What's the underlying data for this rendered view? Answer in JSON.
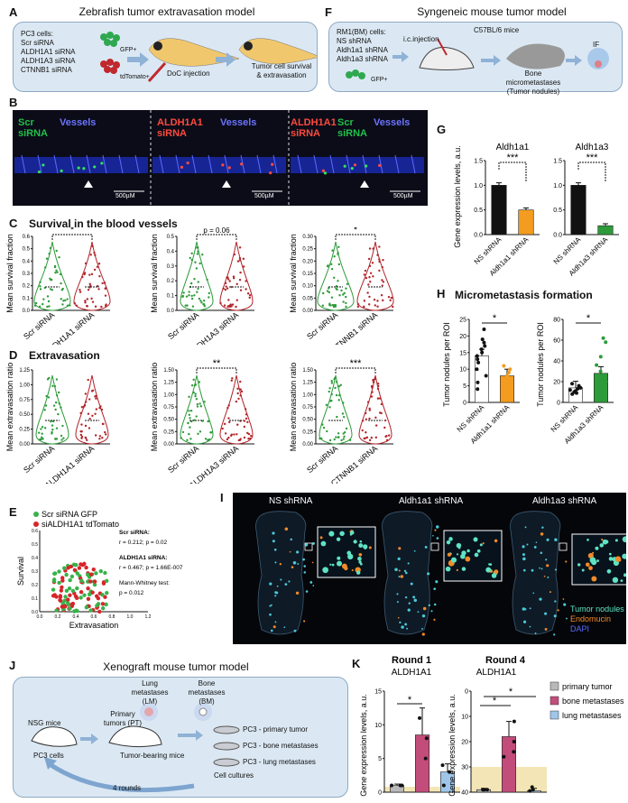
{
  "panelA": {
    "label": "A",
    "title": "Zebrafish tumor extravasation model",
    "cells_title": "PC3 cells:",
    "cells": [
      "Scr siRNA",
      "ALDH1A1 siRNA",
      "ALDH1A3 siRNA",
      "CTNNB1 siRNA"
    ],
    "gfp": "GFP+",
    "tdtomato": "tdTomato+",
    "doc": "DoC injection",
    "outcome": "Tumor cell survival & extravasation"
  },
  "panelB": {
    "label": "B",
    "frames": [
      {
        "l1": "Scr",
        "l2": "siRNA",
        "l3": "",
        "right": "Vessels",
        "scale": "500µM"
      },
      {
        "l1": "ALDH1A1",
        "l2": "siRNA",
        "l3": "",
        "right": "Vessels",
        "scale": "500µM"
      },
      {
        "l1": "ALDH1A1",
        "l2": "siRNA",
        "l3": "Scr siRNA",
        "right": "Vessels",
        "scale": "500µM"
      }
    ]
  },
  "panelC": {
    "label": "C",
    "title": "Survival in the blood vessels",
    "ylabel": "Mean survival fraction",
    "plots": [
      {
        "groups": [
          "Scr siRNA",
          "ALDH1A1 siRNA"
        ],
        "sig": "*",
        "yticks": [
          "0.6",
          "0.5",
          "0.4",
          "0.3",
          "0.2",
          "0.1",
          "0.0"
        ]
      },
      {
        "groups": [
          "Scr siRNA",
          "ALDH1A3 siRNA"
        ],
        "sig": "p = 0.06",
        "yticks": [
          "0.5",
          "0.4",
          "0.3",
          "0.2",
          "0.1",
          "0.0"
        ]
      },
      {
        "groups": [
          "Scr siRNA",
          "CTNNB1 siRNA"
        ],
        "sig": "*",
        "yticks": [
          "0.30",
          "0.25",
          "0.20",
          "0.15",
          "0.10",
          "0.05",
          "0.00"
        ]
      }
    ]
  },
  "panelD": {
    "label": "D",
    "title": "Extravasation",
    "ylabel": "Mean extravasation ratio",
    "plots": [
      {
        "groups": [
          "Scr siRNA",
          "ALDH1A1 siRNA"
        ],
        "sig": "",
        "yticks": [
          "1.25",
          "1.00",
          "0.75",
          "0.50",
          "0.25",
          "0.00"
        ]
      },
      {
        "groups": [
          "Scr siRNA",
          "ALDH1A3 siRNA"
        ],
        "sig": "**",
        "yticks": [
          "1.50",
          "1.25",
          "1.00",
          "0.75",
          "0.50",
          "0.25",
          "0.00"
        ]
      },
      {
        "groups": [
          "Scr siRNA",
          "CTNNB1 siRNA"
        ],
        "sig": "***",
        "yticks": [
          "1.50",
          "1.25",
          "1.00",
          "0.75",
          "0.50",
          "0.25",
          "0.00"
        ]
      }
    ]
  },
  "panelE": {
    "label": "E",
    "legend": [
      "Scr siRNA GFP",
      "siALDH1A1 tdTomato"
    ],
    "xlabel": "Extravasation",
    "ylabel": "Survival",
    "stats": [
      "Scr siRNA:",
      "r = 0.212; p = 0.02",
      "ALDH1A1 siRNA:",
      "r = 0.467; p = 1.66E-007",
      "Mann-Whitney test:",
      "p = 0.012"
    ],
    "xticks": [
      "0.0",
      "0.2",
      "0.4",
      "0.6",
      "0.8",
      "1.0",
      "1.2"
    ],
    "yticks": [
      "0.0",
      "0.1",
      "0.2",
      "0.3",
      "0.4",
      "0.5",
      "0.6"
    ]
  },
  "panelF": {
    "label": "F",
    "title": "Syngeneic mouse tumor model",
    "cells_title": "RM1(BM) cells:",
    "cells": [
      "NS shRNA",
      "Aldh1a1 shRNA",
      "Aldh1a3 shRNA"
    ],
    "gfp": "GFP+",
    "inj": "i.c.injection",
    "mice": "C57BL/6 mice",
    "outcome1": "Bone micrometastases",
    "outcome2": "(Tumor nodules)",
    "if": "IF"
  },
  "panelG": {
    "label": "G",
    "ylabel": "Gene expression levels, a.u.",
    "plots": [
      {
        "title": "Aldh1a1",
        "groups": [
          "NS shRNA",
          "Aldh1a1 shRNA"
        ],
        "sig": "***"
      },
      {
        "title": "Aldh1a3",
        "groups": [
          "NS shRNA",
          "Aldh1a3 shRNA"
        ],
        "sig": "***"
      }
    ],
    "yticks": [
      "1.5",
      "1.0",
      "0.5",
      "0.0"
    ]
  },
  "panelH": {
    "label": "H",
    "title": "Micrometastasis formation",
    "ylabel": "Tumor nodules per ROI",
    "plots": [
      {
        "groups": [
          "NS shRNA",
          "Aldh1a1 shRNA"
        ],
        "sig": "*",
        "yticks": [
          "25",
          "20",
          "15",
          "10",
          "5",
          "0"
        ]
      },
      {
        "groups": [
          "NS shRNA",
          "Aldh1a3 shRNA"
        ],
        "sig": "*",
        "yticks": [
          "80",
          "60",
          "40",
          "20",
          "0"
        ]
      }
    ]
  },
  "panelI": {
    "label": "I",
    "names": [
      "NS shRNA",
      "Aldh1a1 shRNA",
      "Aldh1a3 shRNA"
    ],
    "legend": [
      "Tumor nodules",
      "Endomucin",
      "DAPI"
    ]
  },
  "panelJ": {
    "label": "J",
    "title": "Xenograft mouse tumor model",
    "nsg": "NSG mice",
    "pc3": "PC3 cells",
    "pt": "Primary tumors (PT)",
    "lm": "Lung metastases (LM)",
    "bm": "Bone metastases (BM)",
    "tbm": "Tumor-bearing mice",
    "cultures": [
      "PC3 - primary tumor",
      "PC3 - bone metastases",
      "PC3 - lung metastases"
    ],
    "cc": "Cell cultures",
    "rounds": "4 rounds"
  },
  "panelK": {
    "label": "K",
    "ylabel": "Gene expression levels, a.u.",
    "plots": [
      {
        "title": "Round 1",
        "gene": "ALDH1A1",
        "yticks": [
          "15",
          "10",
          "5",
          "0"
        ],
        "sig": "*"
      },
      {
        "title": "Round 4",
        "gene": "ALDH1A1",
        "yticks": [
          "40",
          "30",
          "20",
          "10",
          "8",
          "6",
          "4",
          "2",
          "0"
        ],
        "sig1": "*",
        "sig2": "*"
      }
    ],
    "legend": [
      "primary tumor",
      "bone metastases",
      "lung metastases"
    ]
  },
  "chart_data": [
    {
      "type": "bar",
      "title": "Aldh1a1",
      "categories": [
        "NS shRNA",
        "Aldh1a1 shRNA"
      ],
      "values": [
        1.0,
        0.5
      ],
      "ylabel": "Gene expression levels, a.u.",
      "ylim": [
        0,
        1.5
      ]
    },
    {
      "type": "bar",
      "title": "Aldh1a3",
      "categories": [
        "NS shRNA",
        "Aldh1a3 shRNA"
      ],
      "values": [
        1.0,
        0.18
      ],
      "ylabel": "Gene expression levels, a.u.",
      "ylim": [
        0,
        1.5
      ]
    },
    {
      "type": "bar",
      "title": "Micrometastasis formation",
      "categories": [
        "NS shRNA",
        "Aldh1a1 shRNA"
      ],
      "values": [
        14,
        8
      ],
      "ylabel": "Tumor nodules per ROI",
      "ylim": [
        0,
        25
      ]
    },
    {
      "type": "bar",
      "title": "Micrometastasis formation",
      "categories": [
        "NS shRNA",
        "Aldh1a3 shRNA"
      ],
      "values": [
        14,
        28
      ],
      "ylabel": "Tumor nodules per ROI",
      "ylim": [
        0,
        80
      ]
    },
    {
      "type": "bar",
      "title": "Round 1",
      "categories": [
        "primary tumor",
        "bone metastases",
        "lung metastases"
      ],
      "values": [
        1,
        8.5,
        3
      ],
      "ylabel": "Gene expression levels, a.u.",
      "ylim": [
        0,
        15
      ]
    },
    {
      "type": "bar",
      "title": "Round 4",
      "categories": [
        "primary tumor",
        "bone metastases",
        "lung metastases"
      ],
      "values": [
        1,
        22,
        0.5
      ],
      "ylabel": "Gene expression levels, a.u.",
      "ylim": [
        0,
        40
      ]
    }
  ]
}
